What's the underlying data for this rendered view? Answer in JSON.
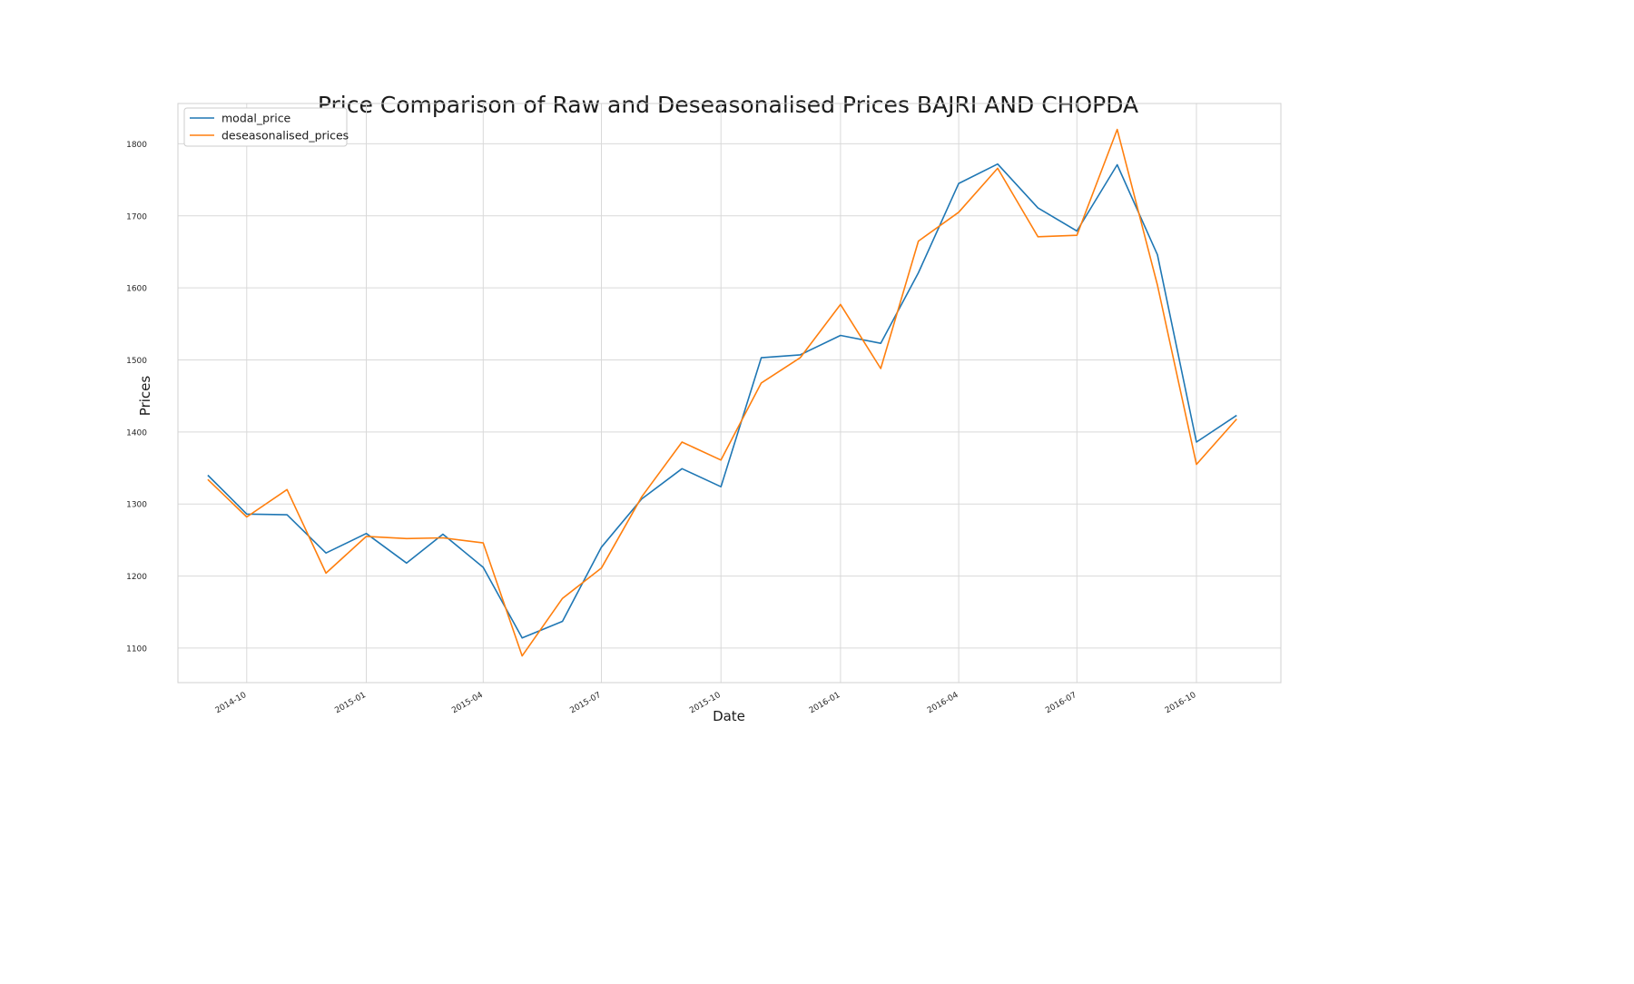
{
  "chart_data": {
    "type": "line",
    "title": "Price Comparison of Raw and Deseasonalised Prices BAJRI AND CHOPDA",
    "xlabel": "Date",
    "ylabel": "Prices",
    "grid": true,
    "legend_position": "top-left",
    "x": [
      "2014-09",
      "2014-10",
      "2014-11",
      "2014-12",
      "2015-01",
      "2015-02",
      "2015-03",
      "2015-04",
      "2015-05",
      "2015-06",
      "2015-07",
      "2015-08",
      "2015-09",
      "2015-10",
      "2015-11",
      "2015-12",
      "2016-01",
      "2016-02",
      "2016-03",
      "2016-04",
      "2016-05",
      "2016-06",
      "2016-07",
      "2016-08",
      "2016-09",
      "2016-10",
      "2016-11"
    ],
    "x_ticks": [
      "2014-10",
      "2015-01",
      "2015-04",
      "2015-07",
      "2015-10",
      "2016-01",
      "2016-04",
      "2016-07",
      "2016-10"
    ],
    "xlim": [
      "2014-08-09",
      "2016-12-05"
    ],
    "y_ticks": [
      1100,
      1200,
      1300,
      1400,
      1500,
      1600,
      1700,
      1800
    ],
    "ylim": [
      1052,
      1856
    ],
    "series": [
      {
        "name": "modal_price",
        "color": "#1f77b4",
        "values": [
          1340,
          1286,
          1285,
          1232,
          1259,
          1218,
          1258,
          1212,
          1114,
          1137,
          1240,
          1307,
          1349,
          1324,
          1503,
          1507,
          1534,
          1523,
          1621,
          1745,
          1772,
          1711,
          1679,
          1771,
          1646,
          1386,
          1423
        ]
      },
      {
        "name": "deseasonalised_prices",
        "color": "#ff7f0e",
        "values": [
          1334,
          1282,
          1320,
          1204,
          1255,
          1252,
          1253,
          1246,
          1089,
          1169,
          1211,
          1310,
          1386,
          1361,
          1468,
          1503,
          1577,
          1488,
          1665,
          1705,
          1766,
          1671,
          1673,
          1820,
          1604,
          1355,
          1418
        ]
      }
    ]
  }
}
